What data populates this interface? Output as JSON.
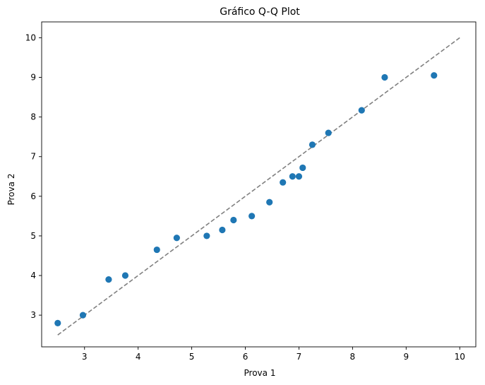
{
  "chart_data": {
    "type": "scatter",
    "title": "Gráfico Q-Q Plot",
    "xlabel": "Prova 1",
    "ylabel": "Prova 2",
    "xlim": [
      2.2,
      10.3
    ],
    "ylim": [
      2.2,
      10.4
    ],
    "xticks": [
      3,
      4,
      5,
      6,
      7,
      8,
      9,
      10
    ],
    "yticks": [
      3,
      4,
      5,
      6,
      7,
      8,
      9,
      10
    ],
    "grid": false,
    "point_color": "#1f77b4",
    "reference_line": {
      "from": [
        2.5,
        2.5
      ],
      "to": [
        10,
        10
      ],
      "color": "#808080",
      "style": "dashed"
    },
    "points": [
      {
        "x": 2.5,
        "y": 2.8
      },
      {
        "x": 2.97,
        "y": 3.0
      },
      {
        "x": 3.45,
        "y": 3.9
      },
      {
        "x": 3.76,
        "y": 4.0
      },
      {
        "x": 4.35,
        "y": 4.65
      },
      {
        "x": 4.72,
        "y": 4.95
      },
      {
        "x": 5.28,
        "y": 5.0
      },
      {
        "x": 5.57,
        "y": 5.15
      },
      {
        "x": 5.78,
        "y": 5.4
      },
      {
        "x": 6.12,
        "y": 5.5
      },
      {
        "x": 6.45,
        "y": 5.85
      },
      {
        "x": 6.7,
        "y": 6.35
      },
      {
        "x": 6.88,
        "y": 6.5
      },
      {
        "x": 7.0,
        "y": 6.5
      },
      {
        "x": 7.07,
        "y": 6.72
      },
      {
        "x": 7.25,
        "y": 7.3
      },
      {
        "x": 7.55,
        "y": 7.6
      },
      {
        "x": 8.17,
        "y": 8.17
      },
      {
        "x": 8.6,
        "y": 9.0
      },
      {
        "x": 9.52,
        "y": 9.05
      }
    ]
  }
}
